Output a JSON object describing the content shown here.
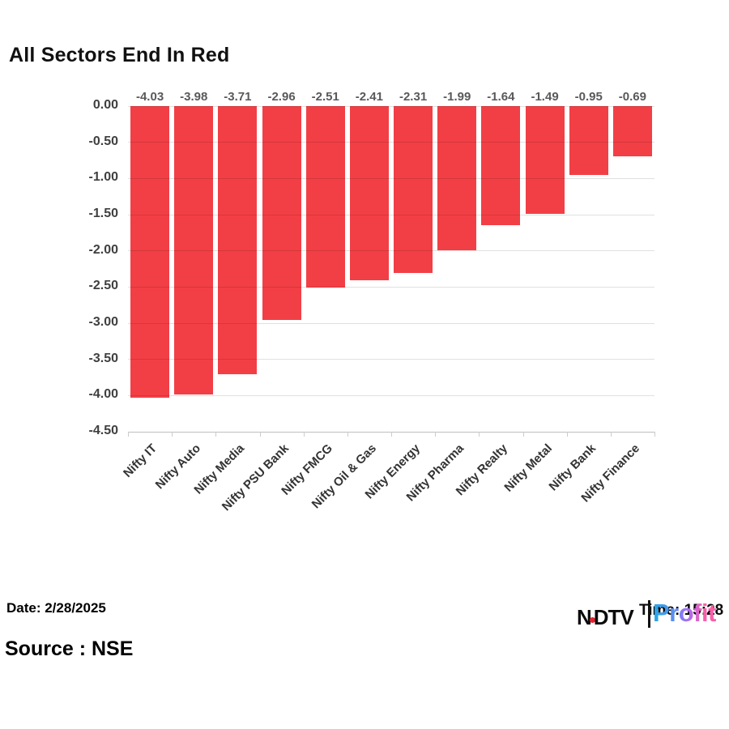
{
  "title": "All Sectors End In Red",
  "footer": {
    "date": "Date: 2/28/2025",
    "source": "Source : NSE"
  },
  "logo": {
    "ndtv_left": "N",
    "ndtv_right": "DTV",
    "time": "Time: 15:28",
    "profit": "Profit"
  },
  "colors": {
    "bar": "#F23F46",
    "bar_value_label": "#595959",
    "axis_label": "#3F3F3F",
    "x_label": "#333333",
    "gridline": "#DDDDDD",
    "axis_line": "#BFBFBF",
    "ndtv_dot": "#E8212E",
    "profit_gradient_start": "#25A9E8",
    "profit_gradient_mid": "#A96CF5",
    "profit_gradient_end": "#FA5FA9"
  },
  "chart_data": {
    "type": "bar",
    "title": "All Sectors End In Red",
    "categories": [
      "Nifty IT",
      "Nifty Auto",
      "Nifty Media",
      "Nifty PSU Bank",
      "Nifty FMCG",
      "Nifty Oil & Gas",
      "Nifty Energy",
      "Nifty Pharma",
      "Nifty Realty",
      "Nifty Metal",
      "Nifty Bank",
      "Nifty Finance"
    ],
    "values": [
      -4.03,
      -3.98,
      -3.71,
      -2.96,
      -2.51,
      -2.41,
      -2.31,
      -1.99,
      -1.64,
      -1.49,
      -0.95,
      -0.69
    ],
    "value_labels": [
      "-4.03",
      "-3.98",
      "-3.71",
      "-2.96",
      "-2.51",
      "-2.41",
      "-2.31",
      "-1.99",
      "-1.64",
      "-1.49",
      "-0.95",
      "-0.69"
    ],
    "xlabel": "",
    "ylabel": "",
    "ylim": [
      -4.5,
      0
    ],
    "ytick_step": 0.5,
    "ytick_labels": [
      "0.00",
      "-0.50",
      "-1.00",
      "-1.50",
      "-2.00",
      "-2.50",
      "-3.00",
      "-3.50",
      "-4.00",
      "-4.50"
    ],
    "grid": true,
    "legend": false,
    "bar_color": "#F23F46"
  }
}
